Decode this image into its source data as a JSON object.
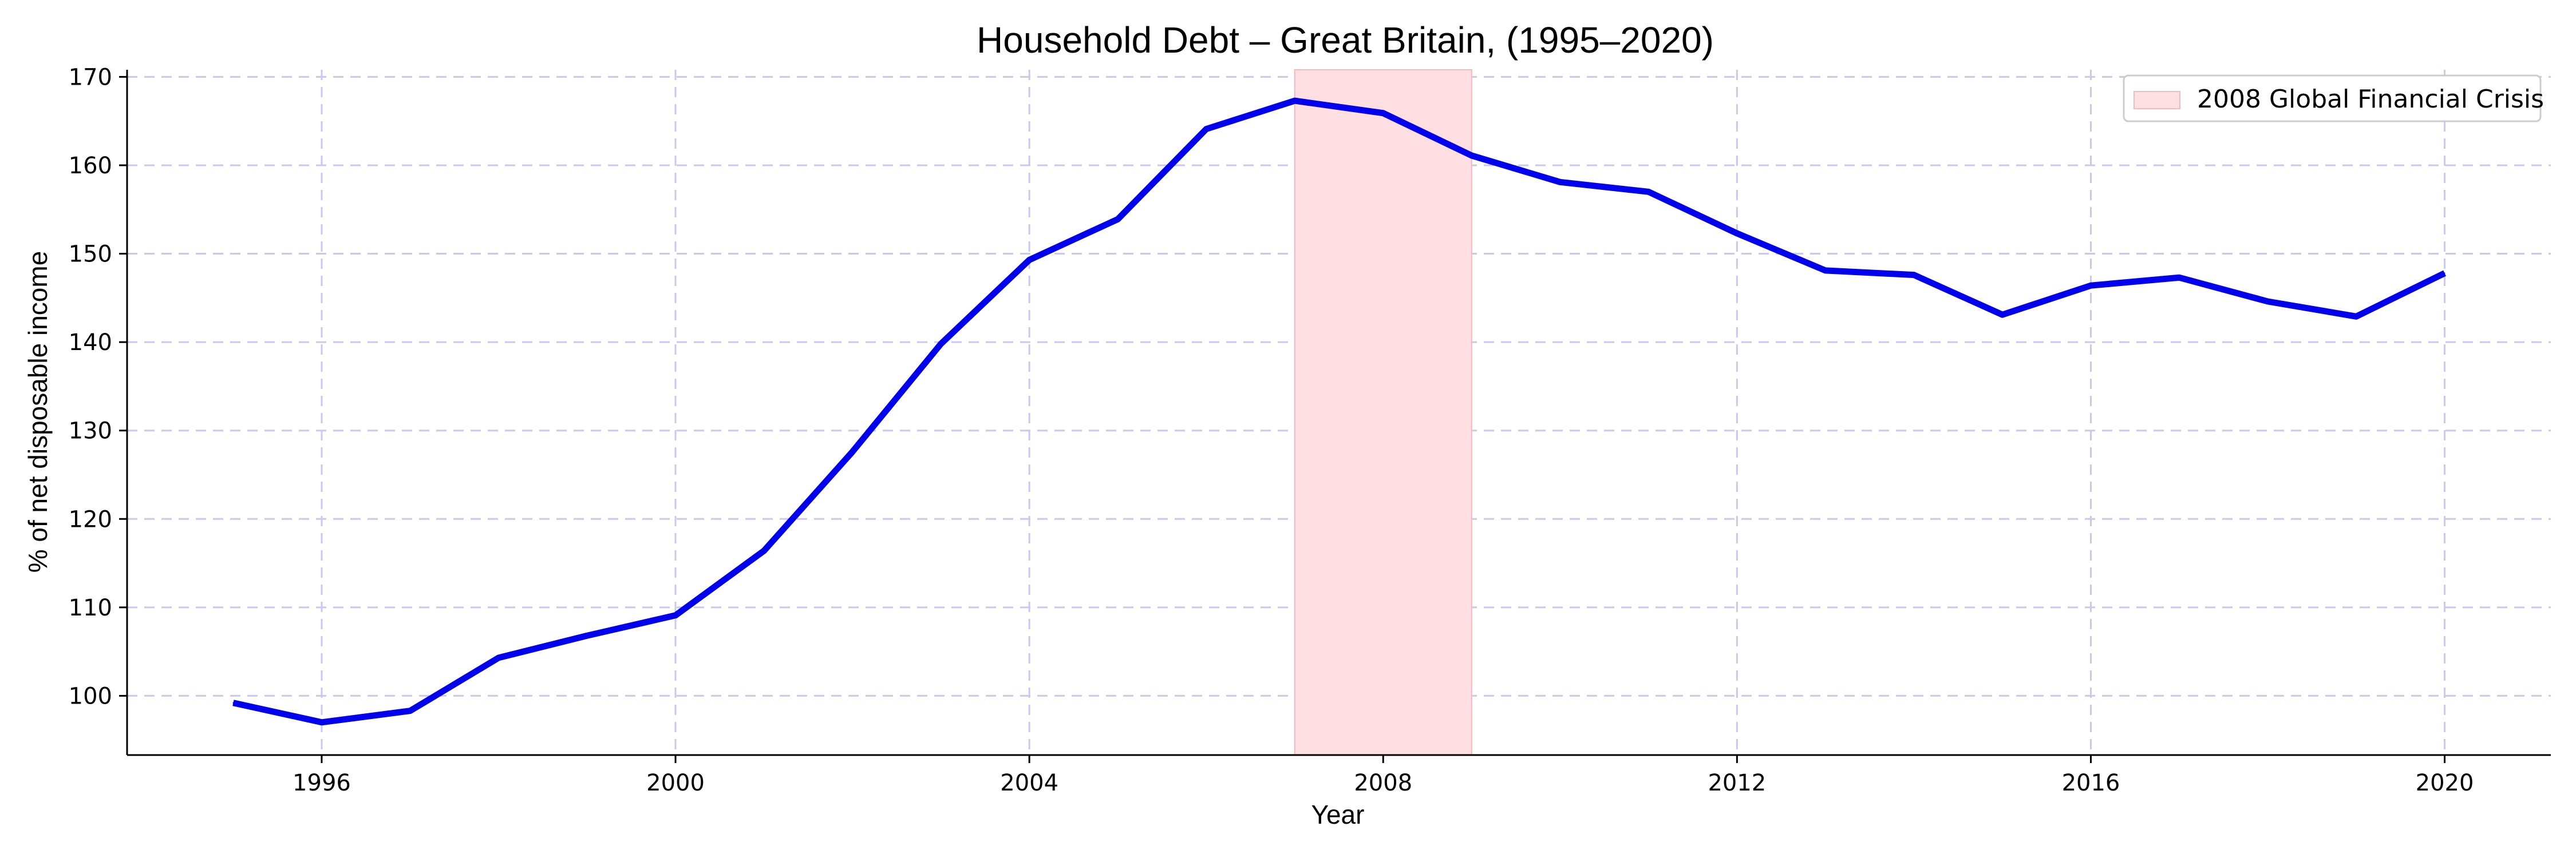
{
  "chart_data": {
    "type": "line",
    "title": "Household Debt – Great Britain, (1995–2020)",
    "xlabel": "Year",
    "ylabel": "% of net disposable income",
    "xlim": [
      1993.8,
      2021.2
    ],
    "ylim": [
      93.3,
      170.8
    ],
    "x_ticks": [
      1996,
      2000,
      2004,
      2008,
      2012,
      2016,
      2020
    ],
    "y_ticks": [
      100,
      110,
      120,
      130,
      140,
      150,
      160,
      170
    ],
    "grid": true,
    "legend_position": "top-right",
    "series": [
      {
        "color": "#0000ee",
        "x": [
          1995,
          1996,
          1997,
          1998,
          1999,
          2000,
          2001,
          2002,
          2003,
          2004,
          2005,
          2006,
          2007,
          2008,
          2009,
          2010,
          2011,
          2012,
          2013,
          2014,
          2015,
          2016,
          2017,
          2018,
          2019,
          2020
        ],
        "y": [
          99.2,
          97.0,
          98.3,
          104.3,
          106.8,
          109.1,
          116.4,
          127.6,
          139.8,
          149.3,
          153.9,
          164.1,
          167.3,
          165.9,
          161.1,
          158.1,
          157.0,
          152.3,
          148.1,
          147.6,
          143.1,
          146.4,
          147.3,
          144.6,
          142.9,
          147.8
        ]
      }
    ],
    "shaded_regions": [
      {
        "name": "2008 Global Financial Crisis",
        "x_start": 2007,
        "x_end": 2009,
        "color": "#ffdfe2"
      }
    ]
  }
}
